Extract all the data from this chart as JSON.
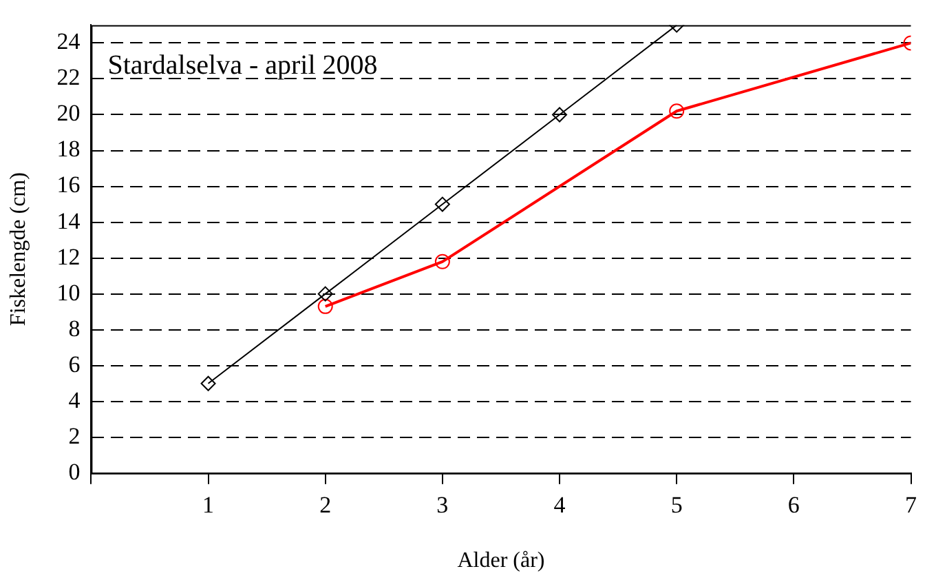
{
  "chart_data": {
    "type": "line",
    "title": "Stardalselva - april 2008",
    "xlabel": "Alder (år)",
    "ylabel": "Fiskelengde (cm)",
    "xlim": [
      0,
      7
    ],
    "xticks": [
      {
        "value": 0,
        "label": null
      },
      1,
      2,
      3,
      4,
      5,
      6,
      7
    ],
    "ylim": [
      0,
      25
    ],
    "yticks": [
      0,
      2,
      4,
      6,
      8,
      10,
      12,
      14,
      16,
      18,
      20,
      22,
      24
    ],
    "grid": "y",
    "legend": false,
    "line_style": "solid",
    "series": [
      {
        "color": "#000000",
        "x": [
          1,
          2,
          3,
          4,
          5
        ],
        "values": [
          5,
          10,
          15,
          20,
          25
        ],
        "marker": "diamond"
      },
      {
        "color": "#ff0000",
        "x": [
          2,
          3,
          5,
          7
        ],
        "values": [
          9.3,
          11.8,
          20.2,
          24
        ],
        "marker": "circle"
      }
    ]
  }
}
